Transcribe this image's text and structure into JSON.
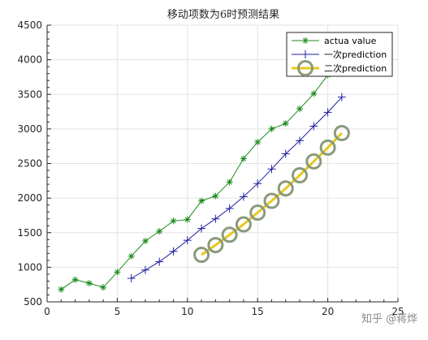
{
  "chart_data": {
    "type": "line",
    "title": "移动项数为6时预测结果",
    "xlim": [
      0,
      25
    ],
    "ylim": [
      500,
      4500
    ],
    "xticks": [
      0,
      5,
      10,
      15,
      20,
      25
    ],
    "yticks": [
      500,
      1000,
      1500,
      2000,
      2500,
      3000,
      3500,
      4000,
      4500
    ],
    "grid": true,
    "legend_position": "top-right",
    "series": [
      {
        "name": "actua value",
        "color": "#1a8a1a",
        "marker": "asterisk",
        "x": [
          1,
          2,
          3,
          4,
          5,
          6,
          7,
          8,
          9,
          10,
          11,
          12,
          13,
          14,
          15,
          16,
          17,
          18,
          19,
          20
        ],
        "y": [
          680,
          820,
          770,
          710,
          930,
          1160,
          1380,
          1520,
          1670,
          1690,
          1960,
          2030,
          2230,
          2570,
          2810,
          3000,
          3080,
          3290,
          3510,
          3780
        ]
      },
      {
        "name": "一次prediction",
        "color": "#1f1fa0",
        "marker": "plus",
        "x": [
          6,
          7,
          8,
          9,
          10,
          11,
          12,
          13,
          14,
          15,
          16,
          17,
          18,
          19,
          20,
          21
        ],
        "y": [
          840,
          960,
          1080,
          1230,
          1390,
          1560,
          1700,
          1850,
          2020,
          2210,
          2420,
          2640,
          2830,
          3040,
          3240,
          3460
        ]
      },
      {
        "name": "二次prediction",
        "color": "#e8c81e",
        "marker": "circle",
        "marker_color": "#8a9a7a",
        "x": [
          11,
          12,
          13,
          14,
          15,
          16,
          17,
          18,
          19,
          20,
          21
        ],
        "y": [
          1180,
          1320,
          1470,
          1620,
          1790,
          1960,
          2140,
          2330,
          2530,
          2730,
          2940
        ]
      }
    ]
  },
  "watermark": "知乎 @蒋烨"
}
